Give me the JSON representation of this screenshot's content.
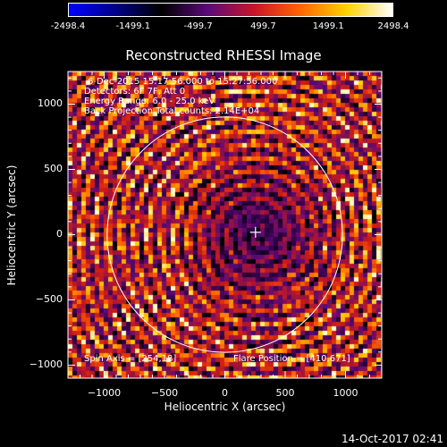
{
  "colorbar": {
    "ticks": [
      "-2498.4",
      "-1499.1",
      "-499.7",
      "499.7",
      "1499.1",
      "2498.4"
    ],
    "stops": [
      "#0000ff",
      "#00008a",
      "#000000",
      "#5a0a78",
      "#c8142a",
      "#ff6400",
      "#ffd200",
      "#ffffff"
    ]
  },
  "image": {
    "title": "Reconstructed RHESSI Image",
    "info_lines": [
      "6-Dec-2015 15:17:56.000 to 15:27:56.000",
      "Detectors: 6F 7F, Att 0",
      "Energy Range: 6.0 - 25.0 keV",
      "Back Projection    Total counts: 2.14E+04"
    ],
    "spin_axis": "Spin Axis = [254,18]",
    "flare_position": "Flare Position = [410,671]"
  },
  "chart_data": {
    "type": "heatmap",
    "title": "Reconstructed RHESSI Image",
    "xlabel": "Heliocentric X (arcsec)",
    "ylabel": "Heliocentric Y (arcsec)",
    "xlim": [
      -1300,
      1300
    ],
    "ylim": [
      -1100,
      1250
    ],
    "x_ticks": [
      -1000,
      -500,
      0,
      500,
      1000
    ],
    "y_ticks": [
      1000,
      500,
      0,
      -500,
      -1000
    ],
    "x_tick_labels": [
      "−1000",
      "−500",
      "0",
      "500",
      "1000"
    ],
    "y_tick_labels": [
      "1000",
      "500",
      "0",
      "−500",
      "−1000"
    ],
    "colorbar_range": [
      -2498.4,
      2498.4
    ],
    "solar_limb_radius": 975,
    "source_marker": [
      254,
      18
    ],
    "colors": {
      "axes": "#ffffff",
      "limb": "#ffffff"
    }
  },
  "timestamp": "14-Oct-2017 02:41"
}
